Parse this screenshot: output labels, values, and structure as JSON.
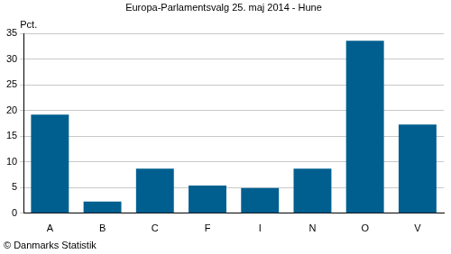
{
  "chart_data": {
    "type": "bar",
    "title": "Europa-Parlamentsvalg 25. maj 2014 - Hune",
    "y_label": "Pct.",
    "annotations": [
      "© Danmarks Statistik"
    ],
    "categories": [
      "A",
      "B",
      "C",
      "F",
      "I",
      "N",
      "O",
      "V"
    ],
    "values": [
      19.2,
      2.3,
      8.7,
      5.4,
      4.9,
      8.7,
      33.6,
      17.3
    ],
    "color": "#005f8f",
    "ylim": [
      0,
      35
    ],
    "yticks": [
      0,
      5,
      10,
      15,
      20,
      25,
      30,
      35
    ],
    "grid": true
  }
}
